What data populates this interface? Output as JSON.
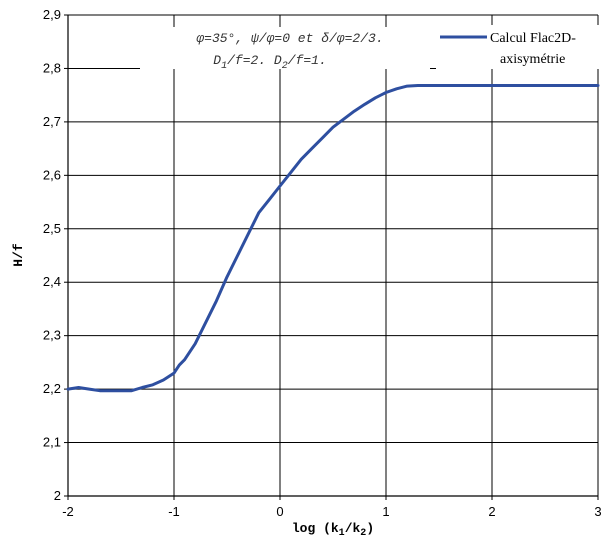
{
  "chart_data": {
    "type": "line",
    "xlabel": "log (k",
    "xlabel_sub1": "1",
    "xlabel_mid": "/k",
    "xlabel_sub2": "2",
    "xlabel_end": ")",
    "ylabel": "H/f",
    "xlim": [
      -2,
      3
    ],
    "ylim": [
      2,
      2.9
    ],
    "x_ticks": [
      -2,
      -1,
      0,
      1,
      2,
      3
    ],
    "x_tick_labels": [
      "-2",
      "-1",
      "0",
      "1",
      "2",
      "3"
    ],
    "y_ticks": [
      2,
      2.1,
      2.2,
      2.3,
      2.4,
      2.5,
      2.6,
      2.7,
      2.8,
      2.9
    ],
    "y_tick_labels": [
      "2",
      "2,1",
      "2,2",
      "2,3",
      "2,4",
      "2,5",
      "2,6",
      "2,7",
      "2,8",
      "2,9"
    ],
    "grid": true,
    "legend_position": "top-right",
    "annotation_line1": "φ=35°, ψ/φ=0 et δ/φ=2/3.",
    "annotation_line2_a": "D",
    "annotation_line2_a_sub": "1",
    "annotation_line2_b": "/f=2. D",
    "annotation_line2_b_sub": "2",
    "annotation_line2_c": "/f=1.",
    "series": [
      {
        "name_line1": "Calcul Flac2D-",
        "name_line2": "axisymétrie",
        "color": "#2e4fa0",
        "x": [
          -2,
          -1.9,
          -1.8,
          -1.7,
          -1.6,
          -1.5,
          -1.4,
          -1.3,
          -1.2,
          -1.1,
          -1.0,
          -0.95,
          -0.9,
          -0.8,
          -0.7,
          -0.6,
          -0.5,
          -0.4,
          -0.3,
          -0.2,
          -0.1,
          0,
          0.1,
          0.2,
          0.3,
          0.4,
          0.5,
          0.6,
          0.7,
          0.8,
          0.9,
          1.0,
          1.1,
          1.2,
          1.3,
          1.4,
          1.5,
          2,
          2.5,
          3
        ],
        "y": [
          2.2,
          2.203,
          2.2,
          2.197,
          2.197,
          2.197,
          2.197,
          2.203,
          2.208,
          2.217,
          2.23,
          2.245,
          2.255,
          2.285,
          2.325,
          2.365,
          2.41,
          2.45,
          2.49,
          2.53,
          2.555,
          2.58,
          2.605,
          2.63,
          2.65,
          2.67,
          2.69,
          2.705,
          2.72,
          2.733,
          2.745,
          2.755,
          2.762,
          2.767,
          2.768,
          2.768,
          2.768,
          2.768,
          2.768,
          2.768
        ]
      }
    ]
  }
}
